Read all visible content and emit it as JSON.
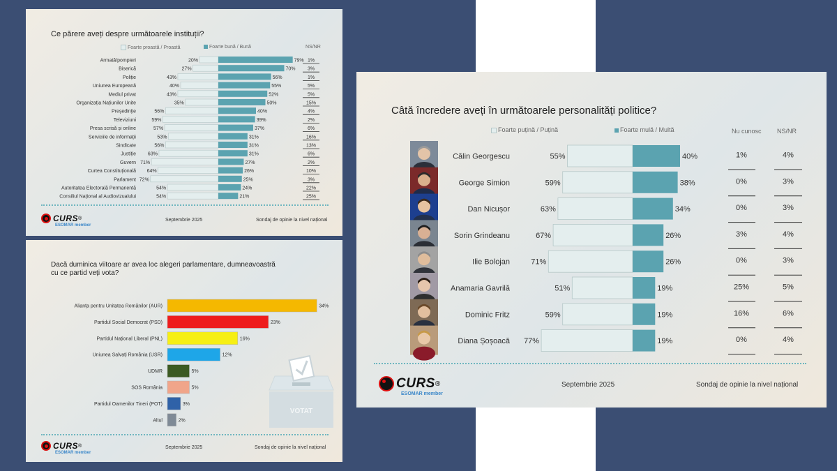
{
  "institutions": {
    "title": "Ce părere aveți despre următoarele instituții?",
    "legend_neg": "Foarte proastă / Proastă",
    "legend_pos": "Foarte bună / Bună",
    "legend_ns": "NS/NR",
    "footer_date": "Septembrie 2025",
    "footer_note": "Sondaj de opinie la nivel național"
  },
  "parties": {
    "title_line1": "Dacă duminica viitoare ar avea loc alegeri parlamentare, dumneavoastră",
    "title_line2": "cu ce partid veți vota?",
    "ballot_label": "VOTAT",
    "footer_date": "Septembrie 2025",
    "footer_note": "Sondaj de opinie la nivel național"
  },
  "politicians": {
    "title": "Câtă încredere aveți în următoarele personalități politice?",
    "legend_neg": "Foarte puțină / Puțină",
    "legend_pos": "Foarte mulă / Multă",
    "legend_unknown": "Nu cunosc",
    "legend_ns": "NS/NR",
    "footer_date": "Septembrie 2025",
    "footer_note": "Sondaj de opinie la nivel național"
  },
  "logo": {
    "text": "CURS",
    "reg": "®",
    "sub": "ESOMAR member"
  },
  "colors": {
    "teal": "#5ba3b0",
    "light": "#e4eeee",
    "background": "#3b4e73"
  },
  "chart_data": [
    {
      "type": "bar",
      "id": "institutions",
      "title": "Ce părere aveți despre următoarele instituții?",
      "categories": [
        "Armată/pompieri",
        "Biserică",
        "Poliție",
        "Uniunea Europeană",
        "Mediul privat",
        "Organizația Națiunilor Unite",
        "Președinție",
        "Televiziuni",
        "Presa scrisă și online",
        "Serviciile de informații",
        "Sindicate",
        "Justiție",
        "Guvern",
        "Curtea Constituțională",
        "Parlament",
        "Autoritatea Electorală Permanentă",
        "Consiliul Național al Audiovizualului"
      ],
      "series": [
        {
          "name": "Foarte proastă / Proastă",
          "values": [
            20,
            27,
            43,
            40,
            43,
            35,
            56,
            59,
            57,
            53,
            56,
            63,
            71,
            64,
            72,
            54,
            54
          ]
        },
        {
          "name": "Foarte bună / Bună",
          "values": [
            79,
            70,
            56,
            55,
            52,
            50,
            40,
            39,
            37,
            31,
            31,
            31,
            27,
            26,
            25,
            24,
            21
          ]
        },
        {
          "name": "NS/NR",
          "values": [
            1,
            3,
            1,
            5,
            5,
            15,
            4,
            2,
            6,
            16,
            13,
            6,
            2,
            10,
            3,
            22,
            25
          ]
        }
      ]
    },
    {
      "type": "bar",
      "id": "parties",
      "title": "Dacă duminica viitoare ar avea loc alegeri parlamentare, dumneavoastră cu ce partid veți vota?",
      "categories": [
        "Alianța pentru Unitatea Românilor (AUR)",
        "Partidul Social Democrat (PSD)",
        "Partidul Național Liberal (PNL)",
        "Uniunea Salvați România (USR)",
        "UDMR",
        "SOS România",
        "Partidul Oamenilor Tineri (POT)",
        "Altul"
      ],
      "values": [
        34,
        23,
        16,
        12,
        5,
        5,
        3,
        2
      ],
      "colors": [
        "#f5b800",
        "#ee1c1c",
        "#f6ef14",
        "#1ea6e8",
        "#3c5a23",
        "#f0a58a",
        "#2f62a8",
        "#7f8a96"
      ]
    },
    {
      "type": "bar",
      "id": "politicians",
      "title": "Câtă încredere aveți în următoarele personalități politice?",
      "categories": [
        "Călin Georgescu",
        "George Simion",
        "Dan Nicușor",
        "Sorin Grindeanu",
        "Ilie Bolojan",
        "Anamaria Gavrilă",
        "Dominic Fritz",
        "Diana Șoșoacă"
      ],
      "series": [
        {
          "name": "Foarte puțină / Puțină",
          "values": [
            55,
            59,
            63,
            67,
            71,
            51,
            59,
            77
          ]
        },
        {
          "name": "Foarte mulă / Multă",
          "values": [
            40,
            38,
            34,
            26,
            26,
            19,
            19,
            19
          ]
        },
        {
          "name": "Nu cunosc",
          "values": [
            1,
            0,
            0,
            3,
            0,
            25,
            16,
            0
          ]
        },
        {
          "name": "NS/NR",
          "values": [
            4,
            3,
            3,
            4,
            3,
            5,
            6,
            4
          ]
        }
      ]
    }
  ]
}
